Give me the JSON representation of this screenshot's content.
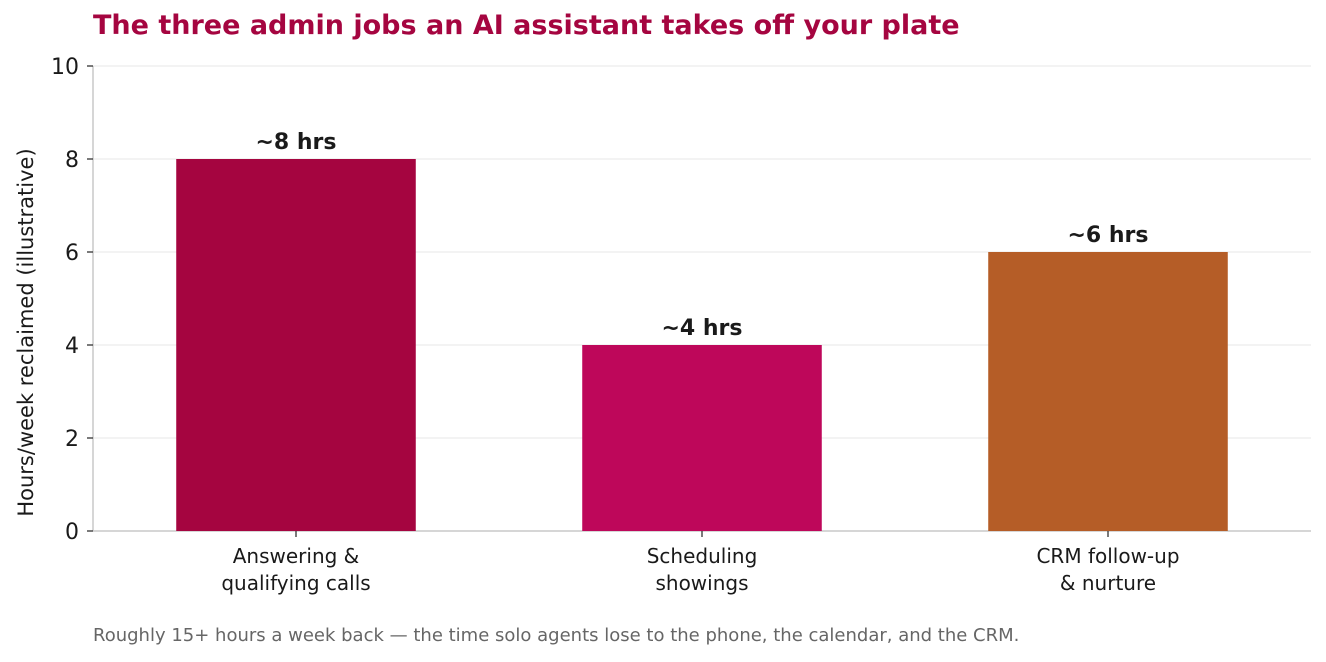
{
  "chart_data": {
    "type": "bar",
    "title": "The three admin jobs an AI assistant takes off your plate",
    "xlabel": "",
    "ylabel": "Hours/week reclaimed (illustrative)",
    "categories": [
      [
        "Answering &",
        "qualifying calls"
      ],
      [
        "Scheduling",
        "showings"
      ],
      [
        "CRM follow-up",
        "& nurture"
      ]
    ],
    "values": [
      8,
      4,
      6
    ],
    "value_labels": [
      "~8 hrs",
      "~4 hrs",
      "~6 hrs"
    ],
    "colors": [
      "#a50540",
      "#be075a",
      "#b55d27"
    ],
    "ylim": [
      0,
      10
    ],
    "yticks": [
      0,
      2,
      4,
      6,
      8,
      10
    ],
    "grid": true,
    "caption": "Roughly 15+ hours a week back — the time solo agents lose to the phone, the calendar, and the CRM."
  },
  "colors": {
    "title": "#a50540",
    "text": "#1a1a1a",
    "caption": "#666666",
    "grid": "#ececec",
    "axis": "#c8c8c8"
  }
}
